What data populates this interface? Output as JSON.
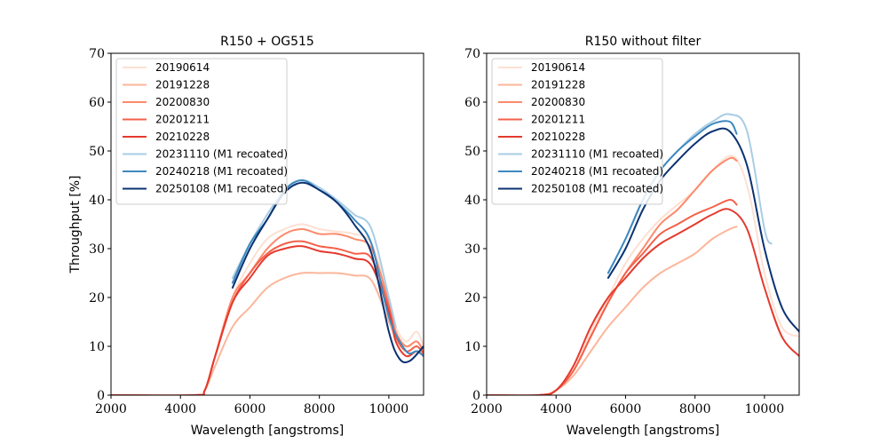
{
  "chart_data": [
    {
      "type": "line",
      "title": "R150 + OG515",
      "xlabel": "Wavelength [angstroms]",
      "ylabel": "Throughput [%]",
      "xlim": [
        2000,
        11000
      ],
      "ylim": [
        0,
        70
      ],
      "xticks": [
        "2000",
        "4000",
        "6000",
        "8000",
        "10000"
      ],
      "yticks": [
        "0",
        "10",
        "20",
        "30",
        "40",
        "50",
        "60",
        "70"
      ],
      "legend_position": "top-left",
      "series": [
        {
          "name": "20190614",
          "color": "#fde0d2",
          "x": [
            2000,
            4400,
            4700,
            5000,
            5500,
            6000,
            6500,
            7000,
            7500,
            8000,
            8500,
            9000,
            9500,
            10000,
            10200,
            10500,
            10800,
            11000
          ],
          "y": [
            0,
            0,
            1,
            8,
            20,
            27,
            32,
            34,
            35,
            34,
            33.5,
            33,
            31,
            20,
            14,
            11,
            13,
            10
          ]
        },
        {
          "name": "20191228",
          "color": "#fcb69b",
          "x": [
            2000,
            4400,
            4700,
            5000,
            5500,
            6000,
            6500,
            7000,
            7500,
            8000,
            8500,
            9000,
            9500,
            10000,
            10200,
            10500,
            10800,
            11000
          ],
          "y": [
            0,
            0,
            1,
            6,
            14,
            18,
            22,
            24,
            25,
            25,
            25,
            24.5,
            23.5,
            15,
            12,
            10,
            11,
            9
          ]
        },
        {
          "name": "20200830",
          "color": "#fc8a6b",
          "x": [
            2000,
            4400,
            4700,
            5000,
            5500,
            6000,
            6500,
            7000,
            7500,
            8000,
            8500,
            9000,
            9500,
            10000,
            10200,
            10500,
            10800,
            11000
          ],
          "y": [
            0,
            0,
            1,
            8,
            20,
            25,
            30,
            33,
            34,
            33,
            33,
            32,
            30,
            19,
            13,
            10,
            11,
            9
          ]
        },
        {
          "name": "20201211",
          "color": "#f5604a",
          "x": [
            2000,
            4400,
            4700,
            5000,
            5500,
            6000,
            6500,
            7000,
            7500,
            8000,
            8500,
            9000,
            9500,
            10000,
            10200,
            10500,
            10800,
            11000
          ],
          "y": [
            0,
            0,
            1,
            8,
            19,
            25,
            29,
            31,
            31.5,
            30.5,
            30,
            29,
            28,
            18,
            12,
            9,
            10,
            8.5
          ]
        },
        {
          "name": "20210228",
          "color": "#e43a2e",
          "x": [
            2000,
            4400,
            4700,
            5000,
            5500,
            6000,
            6500,
            7000,
            7500,
            8000,
            8500,
            9000,
            9500,
            10000,
            10200,
            10500,
            10800,
            11000
          ],
          "y": [
            0,
            0,
            1,
            8,
            19,
            24,
            28.5,
            30,
            30.5,
            29.5,
            29,
            28,
            26.5,
            17,
            11,
            8,
            9,
            8
          ]
        },
        {
          "name": "20231110 (M1 recoated)",
          "color": "#a8cde4",
          "x": [
            5500,
            6000,
            6500,
            7000,
            7500,
            8000,
            8500,
            9000,
            9500,
            10000,
            10200
          ],
          "y": [
            24,
            31,
            37,
            42,
            44,
            42.5,
            40,
            37,
            34,
            20,
            14
          ]
        },
        {
          "name": "20240218 (M1 recoated)",
          "color": "#3e88c0",
          "x": [
            5500,
            6000,
            6500,
            7000,
            7500,
            8000,
            8500,
            9000,
            9500,
            10000,
            10500,
            10800,
            11000
          ],
          "y": [
            23,
            31,
            36,
            42,
            44,
            42,
            39.5,
            36,
            31,
            16,
            9,
            9,
            8
          ]
        },
        {
          "name": "20250108 (M1 recoated)",
          "color": "#0b3271",
          "x": [
            5500,
            6000,
            6500,
            7000,
            7500,
            8000,
            8500,
            9000,
            9500,
            10000,
            10300,
            10600,
            11000
          ],
          "y": [
            22,
            30,
            36,
            41.5,
            43.5,
            42,
            39.5,
            35,
            29,
            13,
            7.5,
            7,
            10
          ]
        }
      ]
    },
    {
      "type": "line",
      "title": "R150 without filter",
      "xlabel": "Wavelength [angstroms]",
      "ylabel": "",
      "xlim": [
        2000,
        11000
      ],
      "ylim": [
        0,
        70
      ],
      "xticks": [
        "2000",
        "4000",
        "6000",
        "8000",
        "10000"
      ],
      "yticks": [
        "0",
        "10",
        "20",
        "30",
        "40",
        "50",
        "60",
        "70"
      ],
      "legend_position": "top-left",
      "series": [
        {
          "name": "20190614",
          "color": "#fde0d2",
          "x": [
            2000,
            3500,
            4000,
            4500,
            5000,
            5500,
            6000,
            6500,
            7000,
            7500,
            8000,
            8500,
            9000,
            9300,
            9600,
            10000,
            10500,
            11000
          ],
          "y": [
            0,
            0,
            1,
            5,
            13,
            20,
            27,
            32,
            36,
            39,
            42,
            46,
            49,
            47,
            40,
            25,
            14,
            12
          ]
        },
        {
          "name": "20191228",
          "color": "#fcb69b",
          "x": [
            2000,
            3500,
            4000,
            4500,
            5000,
            5500,
            6000,
            6500,
            7000,
            7500,
            8000,
            8500,
            9000,
            9200
          ],
          "y": [
            0,
            0,
            1,
            4,
            9,
            14,
            18,
            22,
            25,
            27,
            29,
            32,
            34,
            34.5
          ]
        },
        {
          "name": "20200830",
          "color": "#fc8a6b",
          "x": [
            2000,
            3500,
            4000,
            4500,
            5000,
            5500,
            6000,
            6500,
            7000,
            7500,
            8000,
            8500,
            9000,
            9200
          ],
          "y": [
            0,
            0,
            1,
            5,
            12,
            19,
            25,
            30,
            35,
            38,
            42,
            46,
            48.5,
            48
          ]
        },
        {
          "name": "20201211",
          "color": "#f5604a",
          "x": [
            2000,
            3500,
            4000,
            4500,
            5000,
            5500,
            6000,
            6500,
            7000,
            7500,
            8000,
            8500,
            9000,
            9200
          ],
          "y": [
            0,
            0,
            1,
            5,
            12,
            19,
            25,
            29,
            33,
            35,
            37,
            38.5,
            40,
            39
          ]
        },
        {
          "name": "20210228",
          "color": "#e43a2e",
          "x": [
            2000,
            3500,
            4000,
            4500,
            5000,
            5500,
            6000,
            6500,
            7000,
            7500,
            8000,
            8500,
            9000,
            9500,
            10000,
            10500,
            11000
          ],
          "y": [
            0,
            0,
            1,
            6,
            14,
            20,
            24,
            28,
            31,
            33,
            35,
            37,
            38,
            34,
            22,
            12,
            8
          ]
        },
        {
          "name": "20231110 (M1 recoated)",
          "color": "#a8cde4",
          "x": [
            5500,
            6000,
            6500,
            7000,
            7500,
            8000,
            8500,
            9000,
            9500,
            10000,
            10200
          ],
          "y": [
            25,
            32,
            40,
            46,
            50,
            53.5,
            56,
            57.5,
            54,
            34,
            31
          ]
        },
        {
          "name": "20240218 (M1 recoated)",
          "color": "#3e88c0",
          "x": [
            5500,
            6000,
            6500,
            7000,
            7500,
            8000,
            8500,
            9000,
            9200
          ],
          "y": [
            25,
            32,
            40,
            46,
            50,
            53,
            55.5,
            56,
            53.5
          ]
        },
        {
          "name": "20250108 (M1 recoated)",
          "color": "#0b3271",
          "x": [
            5500,
            6000,
            6500,
            7000,
            7500,
            8000,
            8500,
            9000,
            9500,
            10000,
            10500,
            11000
          ],
          "y": [
            24,
            30,
            38,
            44,
            48,
            51.5,
            54,
            54,
            47,
            30,
            18,
            13
          ]
        }
      ]
    }
  ]
}
